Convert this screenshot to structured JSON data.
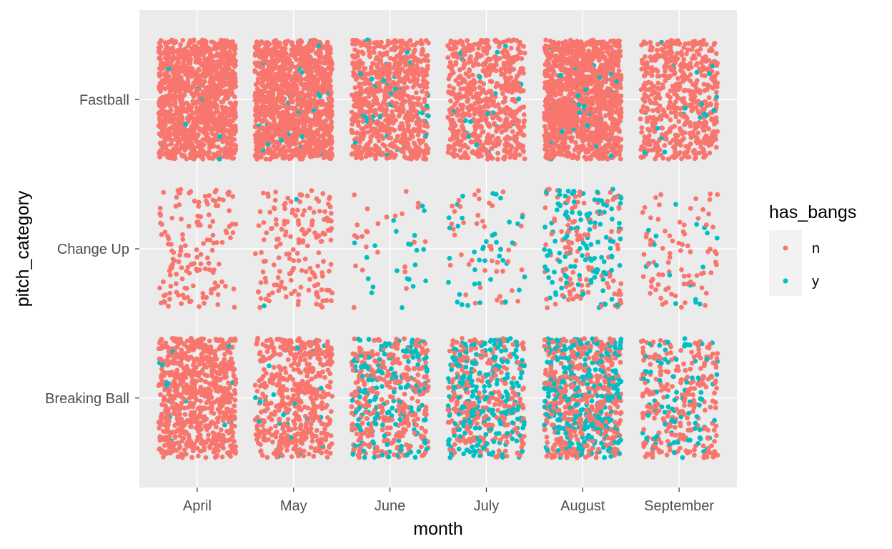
{
  "chart_data": {
    "type": "scatter",
    "jitter": true,
    "x": {
      "label": "month",
      "categories": [
        "April",
        "May",
        "June",
        "July",
        "August",
        "September"
      ]
    },
    "y": {
      "label": "pitch_category",
      "categories": [
        "Breaking Ball",
        "Change Up",
        "Fastball"
      ]
    },
    "legend": {
      "title": "has_bangs",
      "position": "right",
      "entries": [
        {
          "key": "n",
          "label": "n",
          "color": "#F8766D"
        },
        {
          "key": "y",
          "label": "y",
          "color": "#00BFC4"
        }
      ]
    },
    "colors": {
      "panel": "#EBEBEB",
      "grid": "#FFFFFF",
      "n": "#F8766D",
      "y": "#00BFC4"
    },
    "grid": true,
    "counts": [
      {
        "month": "April",
        "pitch_category": "Fastball",
        "n": 1200,
        "y": 12
      },
      {
        "month": "April",
        "pitch_category": "Change Up",
        "n": 150,
        "y": 0
      },
      {
        "month": "April",
        "pitch_category": "Breaking Ball",
        "n": 750,
        "y": 15
      },
      {
        "month": "May",
        "pitch_category": "Fastball",
        "n": 1300,
        "y": 30
      },
      {
        "month": "May",
        "pitch_category": "Change Up",
        "n": 170,
        "y": 2
      },
      {
        "month": "May",
        "pitch_category": "Breaking Ball",
        "n": 520,
        "y": 25
      },
      {
        "month": "June",
        "pitch_category": "Fastball",
        "n": 750,
        "y": 40
      },
      {
        "month": "June",
        "pitch_category": "Change Up",
        "n": 25,
        "y": 22
      },
      {
        "month": "June",
        "pitch_category": "Breaking Ball",
        "n": 350,
        "y": 180
      },
      {
        "month": "July",
        "pitch_category": "Fastball",
        "n": 650,
        "y": 20
      },
      {
        "month": "July",
        "pitch_category": "Change Up",
        "n": 45,
        "y": 40
      },
      {
        "month": "July",
        "pitch_category": "Breaking Ball",
        "n": 280,
        "y": 250
      },
      {
        "month": "August",
        "pitch_category": "Fastball",
        "n": 1300,
        "y": 40
      },
      {
        "month": "August",
        "pitch_category": "Change Up",
        "n": 120,
        "y": 130
      },
      {
        "month": "August",
        "pitch_category": "Breaking Ball",
        "n": 450,
        "y": 330
      },
      {
        "month": "September",
        "pitch_category": "Fastball",
        "n": 560,
        "y": 20
      },
      {
        "month": "September",
        "pitch_category": "Change Up",
        "n": 80,
        "y": 18
      },
      {
        "month": "September",
        "pitch_category": "Breaking Ball",
        "n": 260,
        "y": 90
      }
    ]
  }
}
